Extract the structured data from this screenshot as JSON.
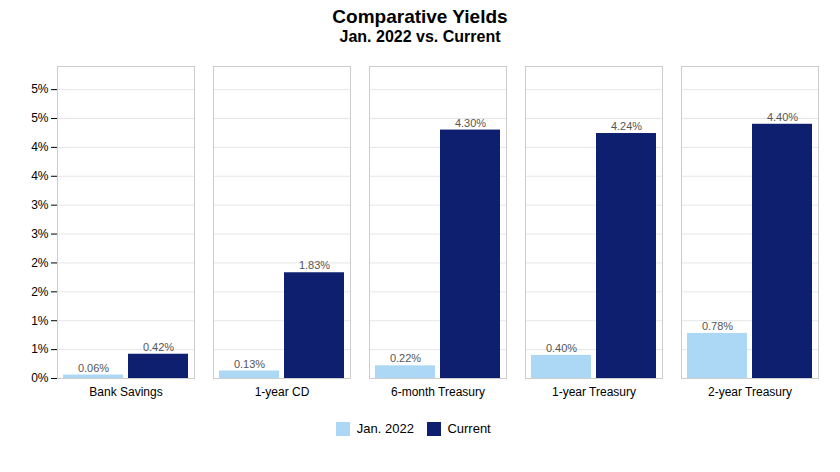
{
  "chart_data": {
    "type": "bar",
    "title": "Comparative Yields",
    "subtitle": "Jan. 2022 vs. Current",
    "categories": [
      "Bank Savings",
      "1-year CD",
      "6-month Treasury",
      "1-year Treasury",
      "2-year Treasury"
    ],
    "series": [
      {
        "name": "Jan. 2022",
        "color": "#add8f5",
        "values": [
          0.0006,
          0.0013,
          0.0022,
          0.004,
          0.0078
        ],
        "value_labels": [
          "0.06%",
          "0.13%",
          "0.22%",
          "0.40%",
          "0.78%"
        ]
      },
      {
        "name": "Current",
        "color": "#0d1f6e",
        "values": [
          0.0042,
          0.0183,
          0.043,
          0.0424,
          0.044
        ],
        "value_labels": [
          "0.42%",
          "1.83%",
          "4.30%",
          "4.24%",
          "4.40%"
        ]
      }
    ],
    "ylim": [
      0,
      0.054
    ],
    "yticks": [
      {
        "value": 0.0,
        "label": "0%"
      },
      {
        "value": 0.005,
        "label": "1%"
      },
      {
        "value": 0.01,
        "label": "1%"
      },
      {
        "value": 0.015,
        "label": "2%"
      },
      {
        "value": 0.02,
        "label": "2%"
      },
      {
        "value": 0.025,
        "label": "3%"
      },
      {
        "value": 0.03,
        "label": "3%"
      },
      {
        "value": 0.035,
        "label": "4%"
      },
      {
        "value": 0.04,
        "label": "4%"
      },
      {
        "value": 0.045,
        "label": "5%"
      },
      {
        "value": 0.05,
        "label": "5%"
      }
    ],
    "grid": true,
    "legend": "bottom",
    "data_labels": true
  }
}
